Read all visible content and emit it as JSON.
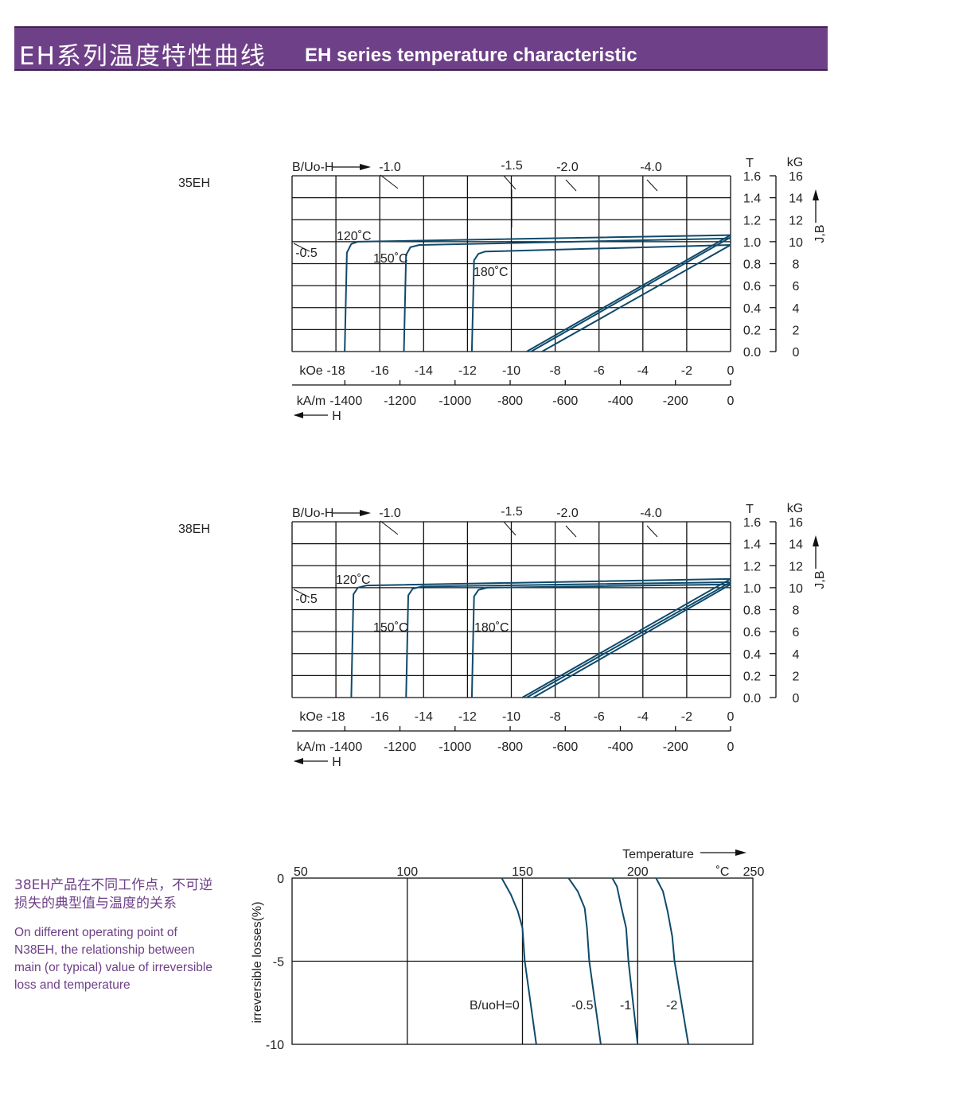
{
  "header": {
    "title_cn": "EH系列温度特性曲线",
    "title_en": "EH series temperature characteristic"
  },
  "description": {
    "cn": "38EH产品在不同工作点，不可逆损失的典型值与温度的关系",
    "en": "On different operating point of N38EH,  the relationship between main (or typical) value of irreversible loss and temperature"
  },
  "colors": {
    "header_bg": "#6e4088",
    "curve": "#0f4a6b",
    "description_text": "#6e4088"
  },
  "chart_data": [
    {
      "type": "line",
      "grade": "35EH",
      "top_label": "B/Uo-H",
      "operating_lines": [
        "-0.5",
        "-1.0",
        "-1.5",
        "-2.0",
        "-4.0"
      ],
      "x_unit_koe": "kOe",
      "x_ticks_koe": [
        "-18",
        "-16",
        "-14",
        "-12",
        "-10",
        "-8",
        "-6",
        "-4",
        "-2",
        "0"
      ],
      "x_unit_kam": "kA/m",
      "x_ticks_kam": [
        "-1400",
        "-1200",
        "-1000",
        "-800",
        "-600",
        "-400",
        "-200",
        "0"
      ],
      "h_label": "H",
      "y_unit_t": "T",
      "y_unit_kg": "kG",
      "y_label": "J,B",
      "y_ticks_t": [
        "0.0",
        "0.2",
        "0.4",
        "0.6",
        "0.8",
        "1.0",
        "1.2",
        "1.4",
        "1.6"
      ],
      "y_ticks_kg": [
        "0",
        "2",
        "4",
        "6",
        "8",
        "10",
        "12",
        "14",
        "16"
      ],
      "xlim": [
        -20,
        0
      ],
      "ylim": [
        0,
        1.6
      ],
      "grid": true,
      "series": [
        {
          "name": "120˚C",
          "J": [
            [
              -17.6,
              0
            ],
            [
              -17.5,
              0.9
            ],
            [
              -17.3,
              0.98
            ],
            [
              -17.0,
              1.0
            ],
            [
              0,
              1.06
            ]
          ],
          "B": [
            [
              -9.3,
              0
            ],
            [
              0,
              1.06
            ]
          ]
        },
        {
          "name": "150˚C",
          "J": [
            [
              -14.9,
              0
            ],
            [
              -14.8,
              0.88
            ],
            [
              -14.6,
              0.95
            ],
            [
              -14.2,
              0.97
            ],
            [
              0,
              1.03
            ]
          ],
          "B": [
            [
              -9.1,
              0
            ],
            [
              0,
              1.04
            ]
          ]
        },
        {
          "name": "180˚C",
          "J": [
            [
              -11.8,
              0
            ],
            [
              -11.7,
              0.83
            ],
            [
              -11.5,
              0.89
            ],
            [
              -11.2,
              0.91
            ],
            [
              0,
              0.97
            ]
          ],
          "B": [
            [
              -8.6,
              0
            ],
            [
              0,
              0.97
            ]
          ]
        }
      ]
    },
    {
      "type": "line",
      "grade": "38EH",
      "top_label": "B/Uo-H",
      "operating_lines": [
        "-0.5",
        "-1.0",
        "-1.5",
        "-2.0",
        "-4.0"
      ],
      "x_unit_koe": "kOe",
      "x_ticks_koe": [
        "-18",
        "-16",
        "-14",
        "-12",
        "-10",
        "-8",
        "-6",
        "-4",
        "-2",
        "0"
      ],
      "x_unit_kam": "kA/m",
      "x_ticks_kam": [
        "-1400",
        "-1200",
        "-1000",
        "-800",
        "-600",
        "-400",
        "-200",
        "0"
      ],
      "h_label": "H",
      "y_unit_t": "T",
      "y_unit_kg": "kG",
      "y_label": "J,B",
      "y_ticks_t": [
        "0.0",
        "0.2",
        "0.4",
        "0.6",
        "0.8",
        "1.0",
        "1.2",
        "1.4",
        "1.6"
      ],
      "y_ticks_kg": [
        "0",
        "2",
        "4",
        "6",
        "8",
        "10",
        "12",
        "14",
        "16"
      ],
      "xlim": [
        -20,
        0
      ],
      "ylim": [
        0,
        1.6
      ],
      "grid": true,
      "series": [
        {
          "name": "120˚C",
          "J": [
            [
              -17.3,
              0
            ],
            [
              -17.2,
              0.94
            ],
            [
              -17.0,
              1.0
            ],
            [
              -16.6,
              1.02
            ],
            [
              0,
              1.08
            ]
          ],
          "B": [
            [
              -9.5,
              0
            ],
            [
              0,
              1.08
            ]
          ]
        },
        {
          "name": "150˚C",
          "J": [
            [
              -14.8,
              0
            ],
            [
              -14.7,
              0.93
            ],
            [
              -14.5,
              0.99
            ],
            [
              -14.1,
              1.01
            ],
            [
              0,
              1.05
            ]
          ],
          "B": [
            [
              -9.3,
              0
            ],
            [
              0,
              1.05
            ]
          ]
        },
        {
          "name": "180˚C",
          "J": [
            [
              -11.8,
              0
            ],
            [
              -11.7,
              0.92
            ],
            [
              -11.5,
              0.98
            ],
            [
              -11.1,
              1.0
            ],
            [
              0,
              1.03
            ]
          ],
          "B": [
            [
              -9.0,
              0
            ],
            [
              0,
              1.03
            ]
          ]
        }
      ]
    },
    {
      "type": "line",
      "x_label": "Temperature",
      "x_unit": "˚C",
      "y_label": "irreversible  losses(%)",
      "x_ticks": [
        "50",
        "100",
        "150",
        "200",
        "250"
      ],
      "y_ticks": [
        "0",
        "-5",
        "-10"
      ],
      "xlim": [
        50,
        250
      ],
      "ylim": [
        -10,
        0
      ],
      "grid": true,
      "series": [
        {
          "name": "B/uoH=0",
          "points": [
            [
              141,
              0
            ],
            [
              145,
              -1
            ],
            [
              148,
              -2
            ],
            [
              150,
              -3
            ],
            [
              151,
              -5
            ],
            [
              156,
              -10
            ]
          ]
        },
        {
          "name": "-0.5",
          "points": [
            [
              170,
              0
            ],
            [
              174,
              -0.8
            ],
            [
              177,
              -1.8
            ],
            [
              178,
              -3
            ],
            [
              179,
              -5
            ],
            [
              184,
              -10
            ]
          ]
        },
        {
          "name": "-1",
          "points": [
            [
              189,
              0
            ],
            [
              191,
              -0.5
            ],
            [
              193,
              -1.8
            ],
            [
              195,
              -3
            ],
            [
              196,
              -5
            ],
            [
              200,
              -10
            ]
          ]
        },
        {
          "name": "-2",
          "points": [
            [
              208,
              0
            ],
            [
              211,
              -0.8
            ],
            [
              213,
              -2
            ],
            [
              215,
              -3.5
            ],
            [
              216,
              -5
            ],
            [
              222,
              -10
            ]
          ]
        }
      ]
    }
  ]
}
